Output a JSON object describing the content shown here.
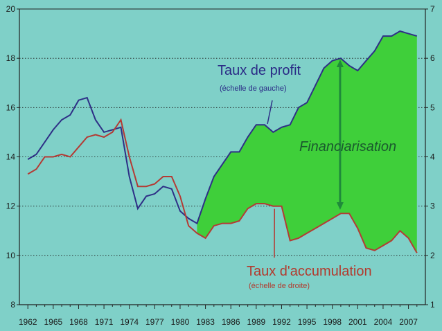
{
  "chart_data": {
    "type": "line",
    "title": "",
    "xlabel": "",
    "ylabel": "",
    "x_ticks": [
      "1962",
      "1965",
      "1968",
      "1971",
      "1974",
      "1977",
      "1980",
      "1983",
      "1986",
      "1989",
      "1992",
      "1995",
      "1998",
      "2001",
      "2004",
      "2007"
    ],
    "xlim": [
      1961,
      2009
    ],
    "ylim_left": [
      8,
      20
    ],
    "ylim_right": [
      1,
      7
    ],
    "y_ticks_left": [
      8,
      10,
      12,
      14,
      16,
      18,
      20
    ],
    "y_ticks_right": [
      1,
      2,
      3,
      4,
      5,
      6,
      7
    ],
    "grid": "horizontal dotted",
    "series": [
      {
        "name": "Taux de profit",
        "axis": "left",
        "color": "#2e2f86",
        "x": [
          1962,
          1963,
          1964,
          1965,
          1966,
          1967,
          1968,
          1969,
          1970,
          1971,
          1972,
          1973,
          1974,
          1975,
          1976,
          1977,
          1978,
          1979,
          1980,
          1981,
          1982,
          1983,
          1984,
          1985,
          1986,
          1987,
          1988,
          1989,
          1990,
          1991,
          1992,
          1993,
          1994,
          1995,
          1996,
          1997,
          1998,
          1999,
          2000,
          2001,
          2002,
          2003,
          2004,
          2005,
          2006,
          2007,
          2008
        ],
        "values": [
          13.9,
          14.1,
          14.6,
          15.1,
          15.5,
          15.7,
          16.3,
          16.4,
          15.5,
          15.0,
          15.1,
          15.2,
          13.2,
          11.9,
          12.4,
          12.5,
          12.8,
          12.7,
          11.8,
          11.5,
          11.3,
          12.3,
          13.2,
          13.7,
          14.2,
          14.2,
          14.8,
          15.3,
          15.3,
          15.0,
          15.2,
          15.3,
          16.0,
          16.2,
          16.9,
          17.6,
          17.9,
          18.0,
          17.7,
          17.5,
          17.9,
          18.3,
          18.9,
          18.9,
          19.1,
          19.0,
          18.9
        ]
      },
      {
        "name": "Taux d'accumulation",
        "axis": "right",
        "color": "#b43a34",
        "x": [
          1962,
          1963,
          1964,
          1965,
          1966,
          1967,
          1968,
          1969,
          1970,
          1971,
          1972,
          1973,
          1974,
          1975,
          1976,
          1977,
          1978,
          1979,
          1980,
          1981,
          1982,
          1983,
          1984,
          1985,
          1986,
          1987,
          1988,
          1989,
          1990,
          1991,
          1992,
          1993,
          1994,
          1995,
          1996,
          1997,
          1998,
          1999,
          2000,
          2001,
          2002,
          2003,
          2004,
          2005,
          2006,
          2007,
          2008
        ],
        "values": [
          3.65,
          3.75,
          4.0,
          4.0,
          4.05,
          4.0,
          4.2,
          4.4,
          4.45,
          4.4,
          4.5,
          4.75,
          4.0,
          3.4,
          3.4,
          3.45,
          3.6,
          3.6,
          3.2,
          2.6,
          2.45,
          2.35,
          2.6,
          2.65,
          2.65,
          2.7,
          2.95,
          3.05,
          3.05,
          3.0,
          3.0,
          2.3,
          2.35,
          2.45,
          2.55,
          2.65,
          2.75,
          2.85,
          2.85,
          2.55,
          2.15,
          2.1,
          2.2,
          2.3,
          2.5,
          2.35,
          2.05
        ]
      }
    ],
    "annotations": {
      "profit_label": "Taux de profit",
      "profit_sub": "(échelle de gauche)",
      "accum_label": "Taux d'accumulation",
      "accum_sub": "(échelle de droite)",
      "shaded_label": "Financiarisation"
    },
    "colors": {
      "background": "#7fd0c8",
      "fill": "#3fcf3a",
      "arrow": "#1f8a3a",
      "profit_text": "#2a2a86",
      "accum_text": "#b23a2e"
    }
  }
}
